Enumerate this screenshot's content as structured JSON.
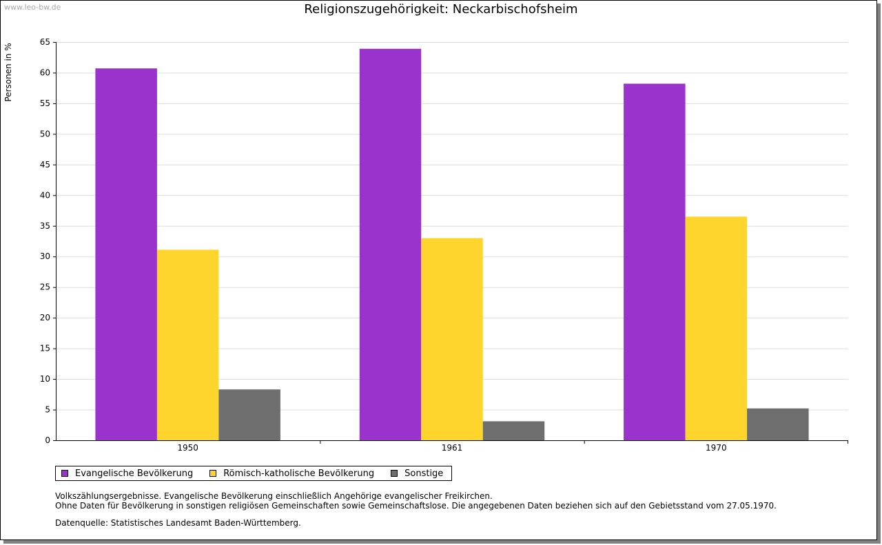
{
  "watermark": "www.leo-bw.de",
  "chart_data": {
    "type": "bar",
    "title": "Religionszugehörigkeit: Neckarbischofsheim",
    "ylabel": "Personen in %",
    "xlabel": "",
    "categories": [
      "1950",
      "1961",
      "1970"
    ],
    "ylim": [
      0,
      65
    ],
    "yticks": [
      0,
      5,
      10,
      15,
      20,
      25,
      30,
      35,
      40,
      45,
      50,
      55,
      60,
      65
    ],
    "grid": true,
    "legend_position": "bottom-left",
    "series": [
      {
        "name": "Evangelische Bevölkerung",
        "color": "#9933cc",
        "values": [
          60.7,
          63.9,
          58.2
        ]
      },
      {
        "name": "Römisch-katholische Bevölkerung",
        "color": "#fdd52c",
        "values": [
          31.1,
          33.0,
          36.5
        ]
      },
      {
        "name": "Sonstige",
        "color": "#6e6e6e",
        "values": [
          8.3,
          3.1,
          5.2
        ]
      }
    ]
  },
  "notes": {
    "line1": "Volkszählungsergebnisse. Evangelische Bevölkerung einschließlich Angehörige evangelischer Freikirchen.",
    "line2": "Ohne Daten für Bevölkerung in sonstigen religiösen Gemeinschaften sowie Gemeinschaftslose. Die angegebenen Daten beziehen sich auf den Gebietsstand vom 27.05.1970."
  },
  "source": "Datenquelle: Statistisches Landesamt Baden-Württemberg."
}
